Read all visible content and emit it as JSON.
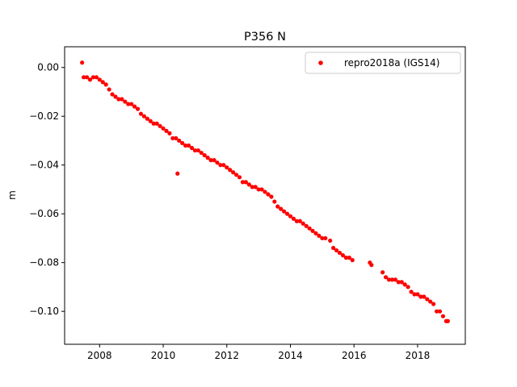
{
  "chart_data": {
    "type": "scatter",
    "title": "P356 N",
    "xlabel": "",
    "ylabel": "m",
    "xlim": [
      2006.9,
      2019.5
    ],
    "ylim": [
      -0.1135,
      0.0085
    ],
    "xticks": [
      2008,
      2010,
      2012,
      2014,
      2016,
      2018
    ],
    "xtick_labels": [
      "2008",
      "2010",
      "2012",
      "2014",
      "2016",
      "2018"
    ],
    "yticks": [
      0.0,
      -0.02,
      -0.04,
      -0.06,
      -0.08,
      -0.1
    ],
    "ytick_labels": [
      "0.00",
      "−0.02",
      "−0.04",
      "−0.06",
      "−0.08",
      "−0.10"
    ],
    "legend_position": "top-right",
    "grid": false,
    "color": "#ff0000",
    "series": [
      {
        "name": "repro2018a (IGS14)",
        "x": [
          2007.45,
          2007.5,
          2007.6,
          2007.7,
          2007.8,
          2007.9,
          2008.0,
          2008.1,
          2008.2,
          2008.3,
          2008.4,
          2008.5,
          2008.6,
          2008.7,
          2008.8,
          2008.9,
          2009.0,
          2009.1,
          2009.2,
          2009.3,
          2009.4,
          2009.5,
          2009.6,
          2009.7,
          2009.8,
          2009.9,
          2010.0,
          2010.1,
          2010.2,
          2010.3,
          2010.4,
          2010.45,
          2010.5,
          2010.6,
          2010.7,
          2010.8,
          2010.9,
          2011.0,
          2011.1,
          2011.2,
          2011.3,
          2011.4,
          2011.5,
          2011.6,
          2011.7,
          2011.8,
          2011.9,
          2012.0,
          2012.1,
          2012.2,
          2012.3,
          2012.4,
          2012.5,
          2012.6,
          2012.7,
          2012.8,
          2012.9,
          2013.0,
          2013.1,
          2013.2,
          2013.3,
          2013.4,
          2013.5,
          2013.6,
          2013.7,
          2013.8,
          2013.9,
          2014.0,
          2014.1,
          2014.2,
          2014.3,
          2014.4,
          2014.5,
          2014.6,
          2014.7,
          2014.8,
          2014.9,
          2015.0,
          2015.1,
          2015.25,
          2015.35,
          2015.45,
          2015.55,
          2015.65,
          2015.75,
          2015.85,
          2015.95,
          2016.5,
          2016.55,
          2016.9,
          2017.0,
          2017.1,
          2017.2,
          2017.3,
          2017.4,
          2017.5,
          2017.6,
          2017.7,
          2017.8,
          2017.9,
          2018.0,
          2018.1,
          2018.2,
          2018.3,
          2018.4,
          2018.5,
          2018.6,
          2018.7,
          2018.8,
          2018.9,
          2018.95
        ],
        "y": [
          0.002,
          -0.004,
          -0.004,
          -0.005,
          -0.004,
          -0.004,
          -0.005,
          -0.006,
          -0.007,
          -0.009,
          -0.011,
          -0.012,
          -0.013,
          -0.013,
          -0.014,
          -0.015,
          -0.015,
          -0.016,
          -0.017,
          -0.019,
          -0.02,
          -0.021,
          -0.022,
          -0.023,
          -0.023,
          -0.024,
          -0.025,
          -0.026,
          -0.027,
          -0.029,
          -0.029,
          -0.0435,
          -0.03,
          -0.031,
          -0.032,
          -0.032,
          -0.033,
          -0.034,
          -0.034,
          -0.035,
          -0.036,
          -0.037,
          -0.038,
          -0.038,
          -0.039,
          -0.04,
          -0.04,
          -0.041,
          -0.042,
          -0.043,
          -0.044,
          -0.045,
          -0.047,
          -0.047,
          -0.048,
          -0.049,
          -0.049,
          -0.05,
          -0.05,
          -0.051,
          -0.052,
          -0.053,
          -0.055,
          -0.057,
          -0.058,
          -0.059,
          -0.06,
          -0.061,
          -0.062,
          -0.063,
          -0.063,
          -0.064,
          -0.065,
          -0.066,
          -0.067,
          -0.068,
          -0.069,
          -0.07,
          -0.07,
          -0.071,
          -0.074,
          -0.075,
          -0.076,
          -0.077,
          -0.078,
          -0.078,
          -0.079,
          -0.08,
          -0.081,
          -0.084,
          -0.086,
          -0.087,
          -0.087,
          -0.087,
          -0.088,
          -0.088,
          -0.089,
          -0.09,
          -0.092,
          -0.093,
          -0.093,
          -0.094,
          -0.094,
          -0.095,
          -0.096,
          -0.097,
          -0.1,
          -0.1,
          -0.102,
          -0.104,
          -0.104
        ]
      }
    ]
  }
}
